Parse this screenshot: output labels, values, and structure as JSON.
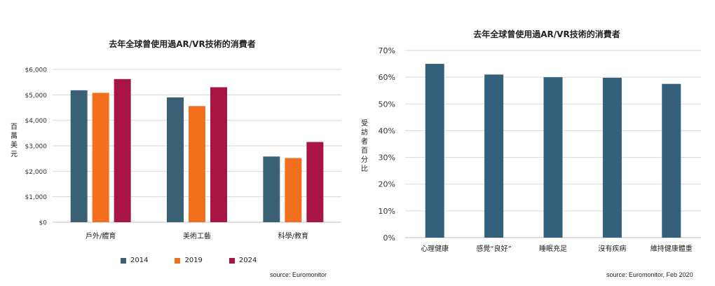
{
  "chart_data": [
    {
      "type": "bar",
      "title": "去年全球曾使用過AR/VR技術的消費者",
      "ylabel": "百萬美元",
      "xlabel": "",
      "categories": [
        "戶外/體育",
        "美術工藝",
        "科學/教育"
      ],
      "series": [
        {
          "name": "2014",
          "values": [
            5180,
            4900,
            2580
          ]
        },
        {
          "name": "2019",
          "values": [
            5080,
            4560,
            2520
          ]
        },
        {
          "name": "2024",
          "values": [
            5620,
            5300,
            3150
          ]
        }
      ],
      "ylim": [
        0,
        6000
      ],
      "yticks": [
        "$0",
        "$1,000",
        "$2,000",
        "$3,000",
        "$4,000",
        "$5,000",
        "$6,000"
      ],
      "grid": true,
      "legend_position": "bottom",
      "source": "source: Euromonitor"
    },
    {
      "type": "bar",
      "title": "去年全球曾使用過AR/VR技術的消費者",
      "ylabel": "受訪者百分比",
      "xlabel": "",
      "categories": [
        "心理健康",
        "感覺“良好”",
        "睡眠充足",
        "沒有疾病",
        "維持健康體重"
      ],
      "values": [
        65,
        61,
        60,
        59.8,
        57.5
      ],
      "ylim": [
        0,
        70
      ],
      "yticks": [
        "0%",
        "10%",
        "20%",
        "30%",
        "40%",
        "50%",
        "60%",
        "70%"
      ],
      "grid": true,
      "source": "source: Euromonitor, Feb 2020"
    }
  ],
  "colors": {
    "s2014": "#3a6076",
    "s2019": "#f26f1e",
    "s2024": "#a81545",
    "single": "#33607a",
    "grid": "#d9d9d9"
  }
}
